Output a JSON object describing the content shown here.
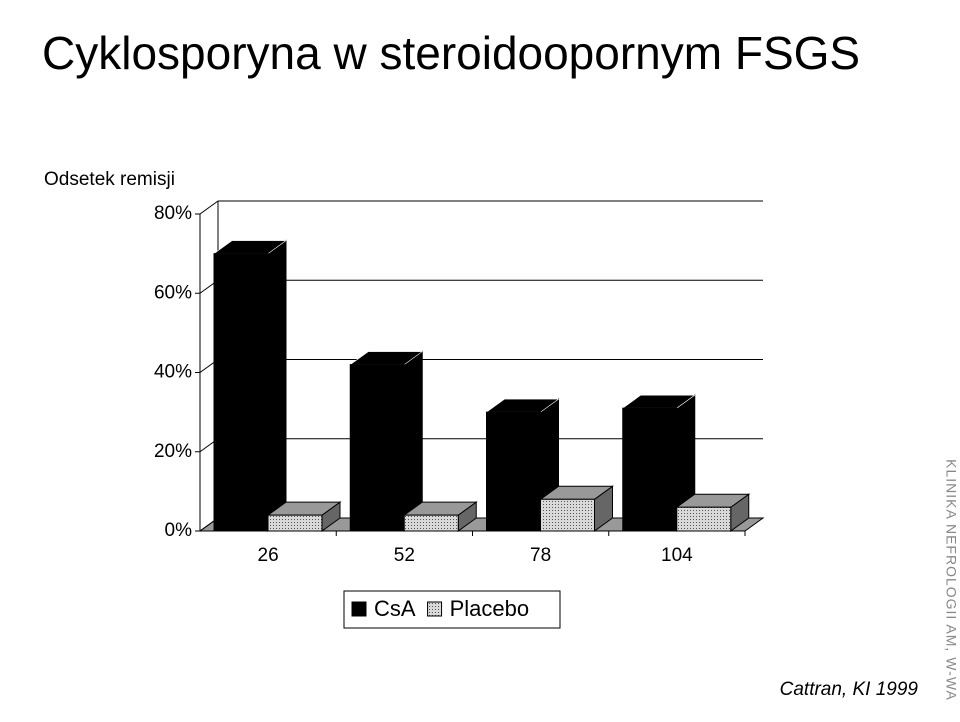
{
  "chart_data": {
    "type": "bar3d",
    "title": "Cyklosporyna w steroidoopornym FSGS",
    "y_label": "Odsetek remisji",
    "categories": [
      "26",
      "52",
      "78",
      "104"
    ],
    "series": [
      {
        "name": "CsA",
        "color": "#000000",
        "values": [
          70,
          42,
          30,
          31
        ]
      },
      {
        "name": "Placebo",
        "color": "#d9d9d9",
        "values": [
          4,
          4,
          8,
          6
        ]
      }
    ],
    "ylim": [
      0,
      80
    ],
    "yticks": [
      {
        "value": 0,
        "label": "0%"
      },
      {
        "value": 20,
        "label": "20%"
      },
      {
        "value": 40,
        "label": "40%"
      },
      {
        "value": 60,
        "label": "60%"
      },
      {
        "value": 80,
        "label": "80%"
      }
    ],
    "grid": true,
    "legend": "bottom",
    "citation": "Cattran, KI 1999",
    "watermark": "KLINIKA NEFROLOGII AM, W-WA"
  }
}
